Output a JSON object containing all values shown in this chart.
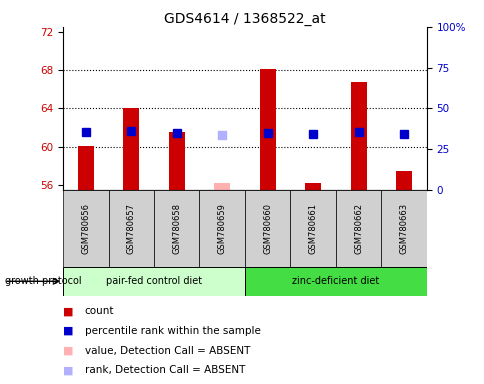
{
  "title": "GDS4614 / 1368522_at",
  "samples": [
    "GSM780656",
    "GSM780657",
    "GSM780658",
    "GSM780659",
    "GSM780660",
    "GSM780661",
    "GSM780662",
    "GSM780663"
  ],
  "count_values": [
    60.1,
    64.0,
    61.5,
    56.2,
    68.1,
    56.2,
    66.8,
    57.5
  ],
  "count_absent": [
    false,
    false,
    false,
    true,
    false,
    false,
    false,
    false
  ],
  "rank_values": [
    61.5,
    61.7,
    61.4,
    61.2,
    61.4,
    61.3,
    61.5,
    61.3
  ],
  "rank_absent": [
    false,
    false,
    false,
    true,
    false,
    false,
    false,
    false
  ],
  "ylim_left": [
    55.5,
    72.5
  ],
  "ylim_right": [
    0,
    100
  ],
  "yticks_left": [
    56,
    60,
    64,
    68,
    72
  ],
  "yticks_right": [
    0,
    25,
    50,
    75,
    100
  ],
  "group1_label": "pair-fed control diet",
  "group2_label": "zinc-deficient diet",
  "group1_samples": 4,
  "group2_samples": 4,
  "group_protocol_label": "growth protocol",
  "color_count": "#cc0000",
  "color_rank": "#0000cc",
  "color_count_absent": "#ffb0b0",
  "color_rank_absent": "#b0b0ff",
  "group1_color": "#ccffcc",
  "group2_color": "#44dd44",
  "sample_bg_color": "#d0d0d0",
  "plot_bg_color": "#ffffff",
  "bar_width": 0.35,
  "marker_size": 6,
  "title_fontsize": 10,
  "tick_fontsize": 7.5,
  "legend_fontsize": 7.5
}
